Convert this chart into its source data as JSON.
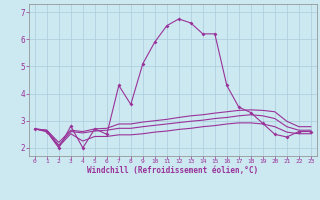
{
  "x_main": [
    0,
    1,
    2,
    3,
    4,
    5,
    6,
    7,
    8,
    9,
    10,
    11,
    12,
    13,
    14,
    15,
    16,
    17,
    18,
    19,
    20,
    21,
    22,
    23
  ],
  "y_main": [
    2.7,
    2.6,
    2.0,
    2.8,
    2.0,
    2.7,
    2.5,
    4.3,
    3.6,
    5.1,
    5.9,
    6.5,
    6.75,
    6.6,
    6.2,
    6.2,
    4.3,
    3.5,
    3.3,
    2.9,
    2.5,
    2.4,
    2.6,
    2.6
  ],
  "y_line1": [
    2.7,
    2.65,
    2.2,
    2.65,
    2.6,
    2.7,
    2.72,
    2.88,
    2.88,
    2.95,
    3.0,
    3.05,
    3.12,
    3.18,
    3.22,
    3.28,
    3.33,
    3.38,
    3.4,
    3.38,
    3.33,
    2.98,
    2.78,
    2.78
  ],
  "y_line2": [
    2.7,
    2.65,
    2.1,
    2.6,
    2.55,
    2.62,
    2.65,
    2.72,
    2.72,
    2.78,
    2.83,
    2.88,
    2.93,
    2.98,
    3.02,
    3.08,
    3.12,
    3.18,
    3.22,
    3.18,
    3.08,
    2.78,
    2.65,
    2.65
  ],
  "y_line3": [
    2.7,
    2.6,
    2.05,
    2.52,
    2.25,
    2.42,
    2.42,
    2.48,
    2.48,
    2.52,
    2.58,
    2.62,
    2.68,
    2.72,
    2.78,
    2.82,
    2.88,
    2.92,
    2.92,
    2.88,
    2.78,
    2.58,
    2.52,
    2.52
  ],
  "line_color": "#993399",
  "bg_color": "#cce8f0",
  "grid_color": "#aaccdd",
  "axis_color": "#993399",
  "xlabel": "Windchill (Refroidissement éolien,°C)",
  "xlim": [
    -0.5,
    23.5
  ],
  "ylim": [
    1.7,
    7.3
  ],
  "yticks": [
    2,
    3,
    4,
    5,
    6,
    7
  ],
  "xticks": [
    0,
    1,
    2,
    3,
    4,
    5,
    6,
    7,
    8,
    9,
    10,
    11,
    12,
    13,
    14,
    15,
    16,
    17,
    18,
    19,
    20,
    21,
    22,
    23
  ]
}
